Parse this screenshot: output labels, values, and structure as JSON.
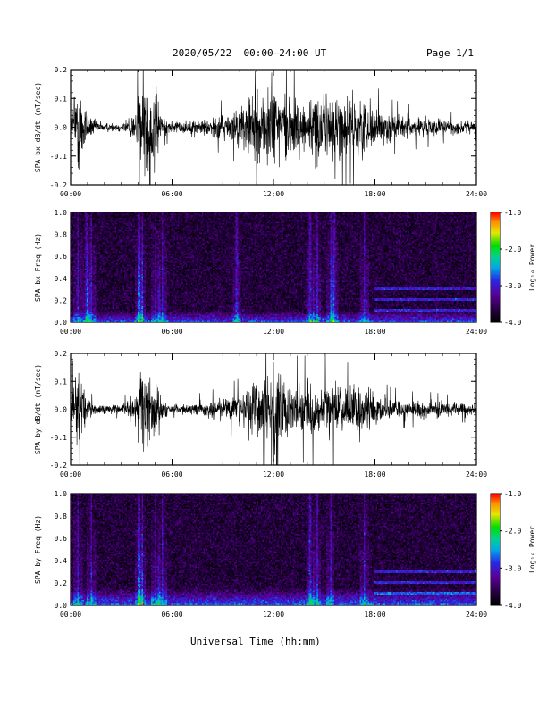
{
  "header": {
    "title": "2020/05/22  00:00–24:00 UT",
    "page": "Page 1/1"
  },
  "footer": {
    "xlabel": "Universal Time (hh:mm)"
  },
  "colors": {
    "background": "#ffffff",
    "trace": "#000000",
    "frame": "#000000"
  },
  "chart_data": [
    {
      "type": "line",
      "ylabel": "SPA bx dB/dt (nT/sec)",
      "ylim": [
        -0.2,
        0.2
      ],
      "yticks": [
        "-0.2",
        "-0.1",
        "0.0",
        "0.1",
        "0.2"
      ],
      "xlim_hours": [
        0,
        24
      ],
      "xticks": [
        "00:00",
        "06:00",
        "12:00",
        "18:00",
        "24:00"
      ],
      "series": [
        {
          "x": [
            0,
            0.3,
            0.6,
            1,
            1.5,
            2,
            3,
            3.8,
            4.2,
            4.5,
            5,
            5.5,
            6,
            7,
            8,
            9,
            10,
            10.5,
            11,
            11.5,
            12,
            12.5,
            13,
            14,
            14.5,
            15,
            15.5,
            16,
            16.5,
            17,
            17.5,
            18,
            19,
            20,
            21,
            22,
            23,
            24
          ],
          "envelope": [
            0.06,
            0.22,
            0.2,
            0.07,
            0.03,
            0.02,
            0.02,
            0.07,
            0.22,
            0.22,
            0.2,
            0.04,
            0.03,
            0.03,
            0.04,
            0.06,
            0.08,
            0.14,
            0.2,
            0.18,
            0.22,
            0.2,
            0.14,
            0.13,
            0.15,
            0.14,
            0.18,
            0.15,
            0.12,
            0.14,
            0.12,
            0.09,
            0.06,
            0.05,
            0.045,
            0.035,
            0.03,
            0.03
          ]
        }
      ]
    },
    {
      "type": "heatmap",
      "ylabel": "SPA bx Freq (Hz)",
      "ylim": [
        0.0,
        1.0
      ],
      "yticks": [
        "0.0",
        "0.2",
        "0.4",
        "0.6",
        "0.8",
        "1.0"
      ],
      "xlim_hours": [
        0,
        24
      ],
      "xticks": [
        "00:00",
        "06:00",
        "12:00",
        "18:00",
        "24:00"
      ],
      "colorbar": {
        "label": "Log₁₀ Power",
        "range": [
          -4.0,
          -1.0
        ],
        "ticks": [
          "-1.0",
          "-2.0",
          "-3.0",
          "-4.0"
        ]
      },
      "background_level": -3.7,
      "low_freq_band": {
        "freq_top": 0.1,
        "level": -2.7
      },
      "vertical_lines_hours": [
        0.4,
        0.9,
        1.2,
        4.0,
        4.2,
        5.0,
        5.4,
        9.8,
        14.2,
        14.6,
        15.4,
        15.6,
        17.4
      ],
      "harmonic_lines_hz": [
        0.1,
        0.2,
        0.3
      ],
      "harmonic_start_hours": 18.0
    },
    {
      "type": "line",
      "ylabel": "SPA by dB/dt (nT/sec)",
      "ylim": [
        -0.2,
        0.2
      ],
      "yticks": [
        "-0.2",
        "-0.1",
        "0.0",
        "0.1",
        "0.2"
      ],
      "xlim_hours": [
        0,
        24
      ],
      "xticks": [
        "00:00",
        "06:00",
        "12:00",
        "18:00",
        "24:00"
      ],
      "series": [
        {
          "x": [
            0,
            0.3,
            0.6,
            1,
            1.5,
            2,
            3,
            3.8,
            4.2,
            4.5,
            5,
            5.5,
            6,
            7,
            8,
            9,
            10,
            10.5,
            11,
            11.5,
            12,
            12.5,
            13,
            14,
            14.5,
            15,
            15.5,
            16,
            16.5,
            17,
            17.5,
            18,
            19,
            20,
            21,
            22,
            23,
            24
          ],
          "envelope": [
            0.05,
            0.2,
            0.14,
            0.05,
            0.02,
            0.02,
            0.02,
            0.06,
            0.2,
            0.22,
            0.18,
            0.04,
            0.03,
            0.03,
            0.04,
            0.05,
            0.07,
            0.1,
            0.12,
            0.14,
            0.22,
            0.2,
            0.12,
            0.12,
            0.13,
            0.12,
            0.15,
            0.12,
            0.1,
            0.12,
            0.1,
            0.07,
            0.05,
            0.04,
            0.04,
            0.035,
            0.03,
            0.03
          ]
        }
      ]
    },
    {
      "type": "heatmap",
      "ylabel": "SPA by Freq (Hz)",
      "ylim": [
        0.0,
        1.0
      ],
      "yticks": [
        "0.0",
        "0.2",
        "0.4",
        "0.6",
        "0.8",
        "1.0"
      ],
      "xlim_hours": [
        0,
        24
      ],
      "xticks": [
        "00:00",
        "06:00",
        "12:00",
        "18:00",
        "24:00"
      ],
      "colorbar": {
        "label": "Log₁₀ Power",
        "range": [
          -4.0,
          -1.0
        ],
        "ticks": [
          "-1.0",
          "-2.0",
          "-3.0",
          "-4.0"
        ]
      },
      "background_level": -3.7,
      "low_freq_band": {
        "freq_top": 0.15,
        "level": -2.6
      },
      "vertical_lines_hours": [
        0.4,
        1.2,
        4.0,
        4.2,
        5.0,
        5.4,
        14.2,
        14.6,
        15.4,
        17.4
      ],
      "harmonic_lines_hz": [
        0.1,
        0.2,
        0.3
      ],
      "harmonic_start_hours": 18.0
    }
  ]
}
